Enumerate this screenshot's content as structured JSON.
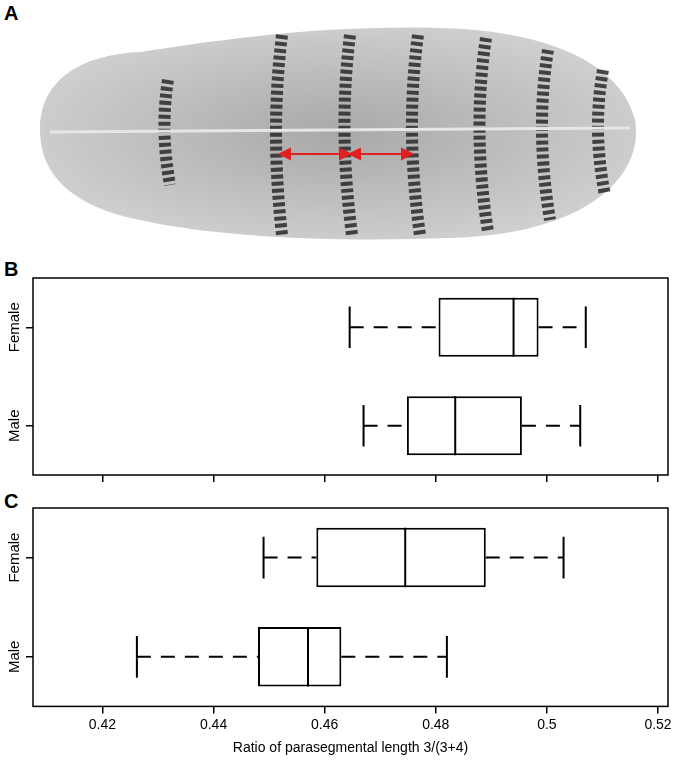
{
  "image": {
    "panel": "A"
  },
  "chart_data": [
    {
      "type": "boxplot",
      "panel": "B",
      "orientation": "horizontal",
      "categories": [
        "Female",
        "Male"
      ],
      "whisker_low": [
        0.4645,
        0.467
      ],
      "q1": [
        0.4805,
        0.4748
      ],
      "median": [
        0.494,
        0.4835
      ],
      "q3": [
        0.4985,
        0.4955
      ],
      "whisker_high": [
        0.507,
        0.506
      ],
      "color": "#000000",
      "xlim": [
        0.4075,
        0.5218
      ],
      "xticks": [
        0.42,
        0.44,
        0.46,
        0.48,
        0.5,
        0.52
      ],
      "grid": false,
      "tick_labels": "y"
    },
    {
      "type": "boxplot",
      "panel": "C",
      "orientation": "horizontal",
      "categories": [
        "Female",
        "Male"
      ],
      "whisker_low": [
        0.449,
        0.4262
      ],
      "q1": [
        0.4585,
        0.448
      ],
      "median": [
        0.4745,
        0.457
      ],
      "q3": [
        0.489,
        0.463
      ],
      "whisker_high": [
        0.503,
        0.482
      ],
      "color": "#000000",
      "xlim": [
        0.4075,
        0.5218
      ],
      "xticks": [
        0.42,
        0.44,
        0.46,
        0.48,
        0.5,
        0.52
      ],
      "x_label": "Ratio of parasegmental length 3/(3+4)",
      "grid": false
    }
  ]
}
